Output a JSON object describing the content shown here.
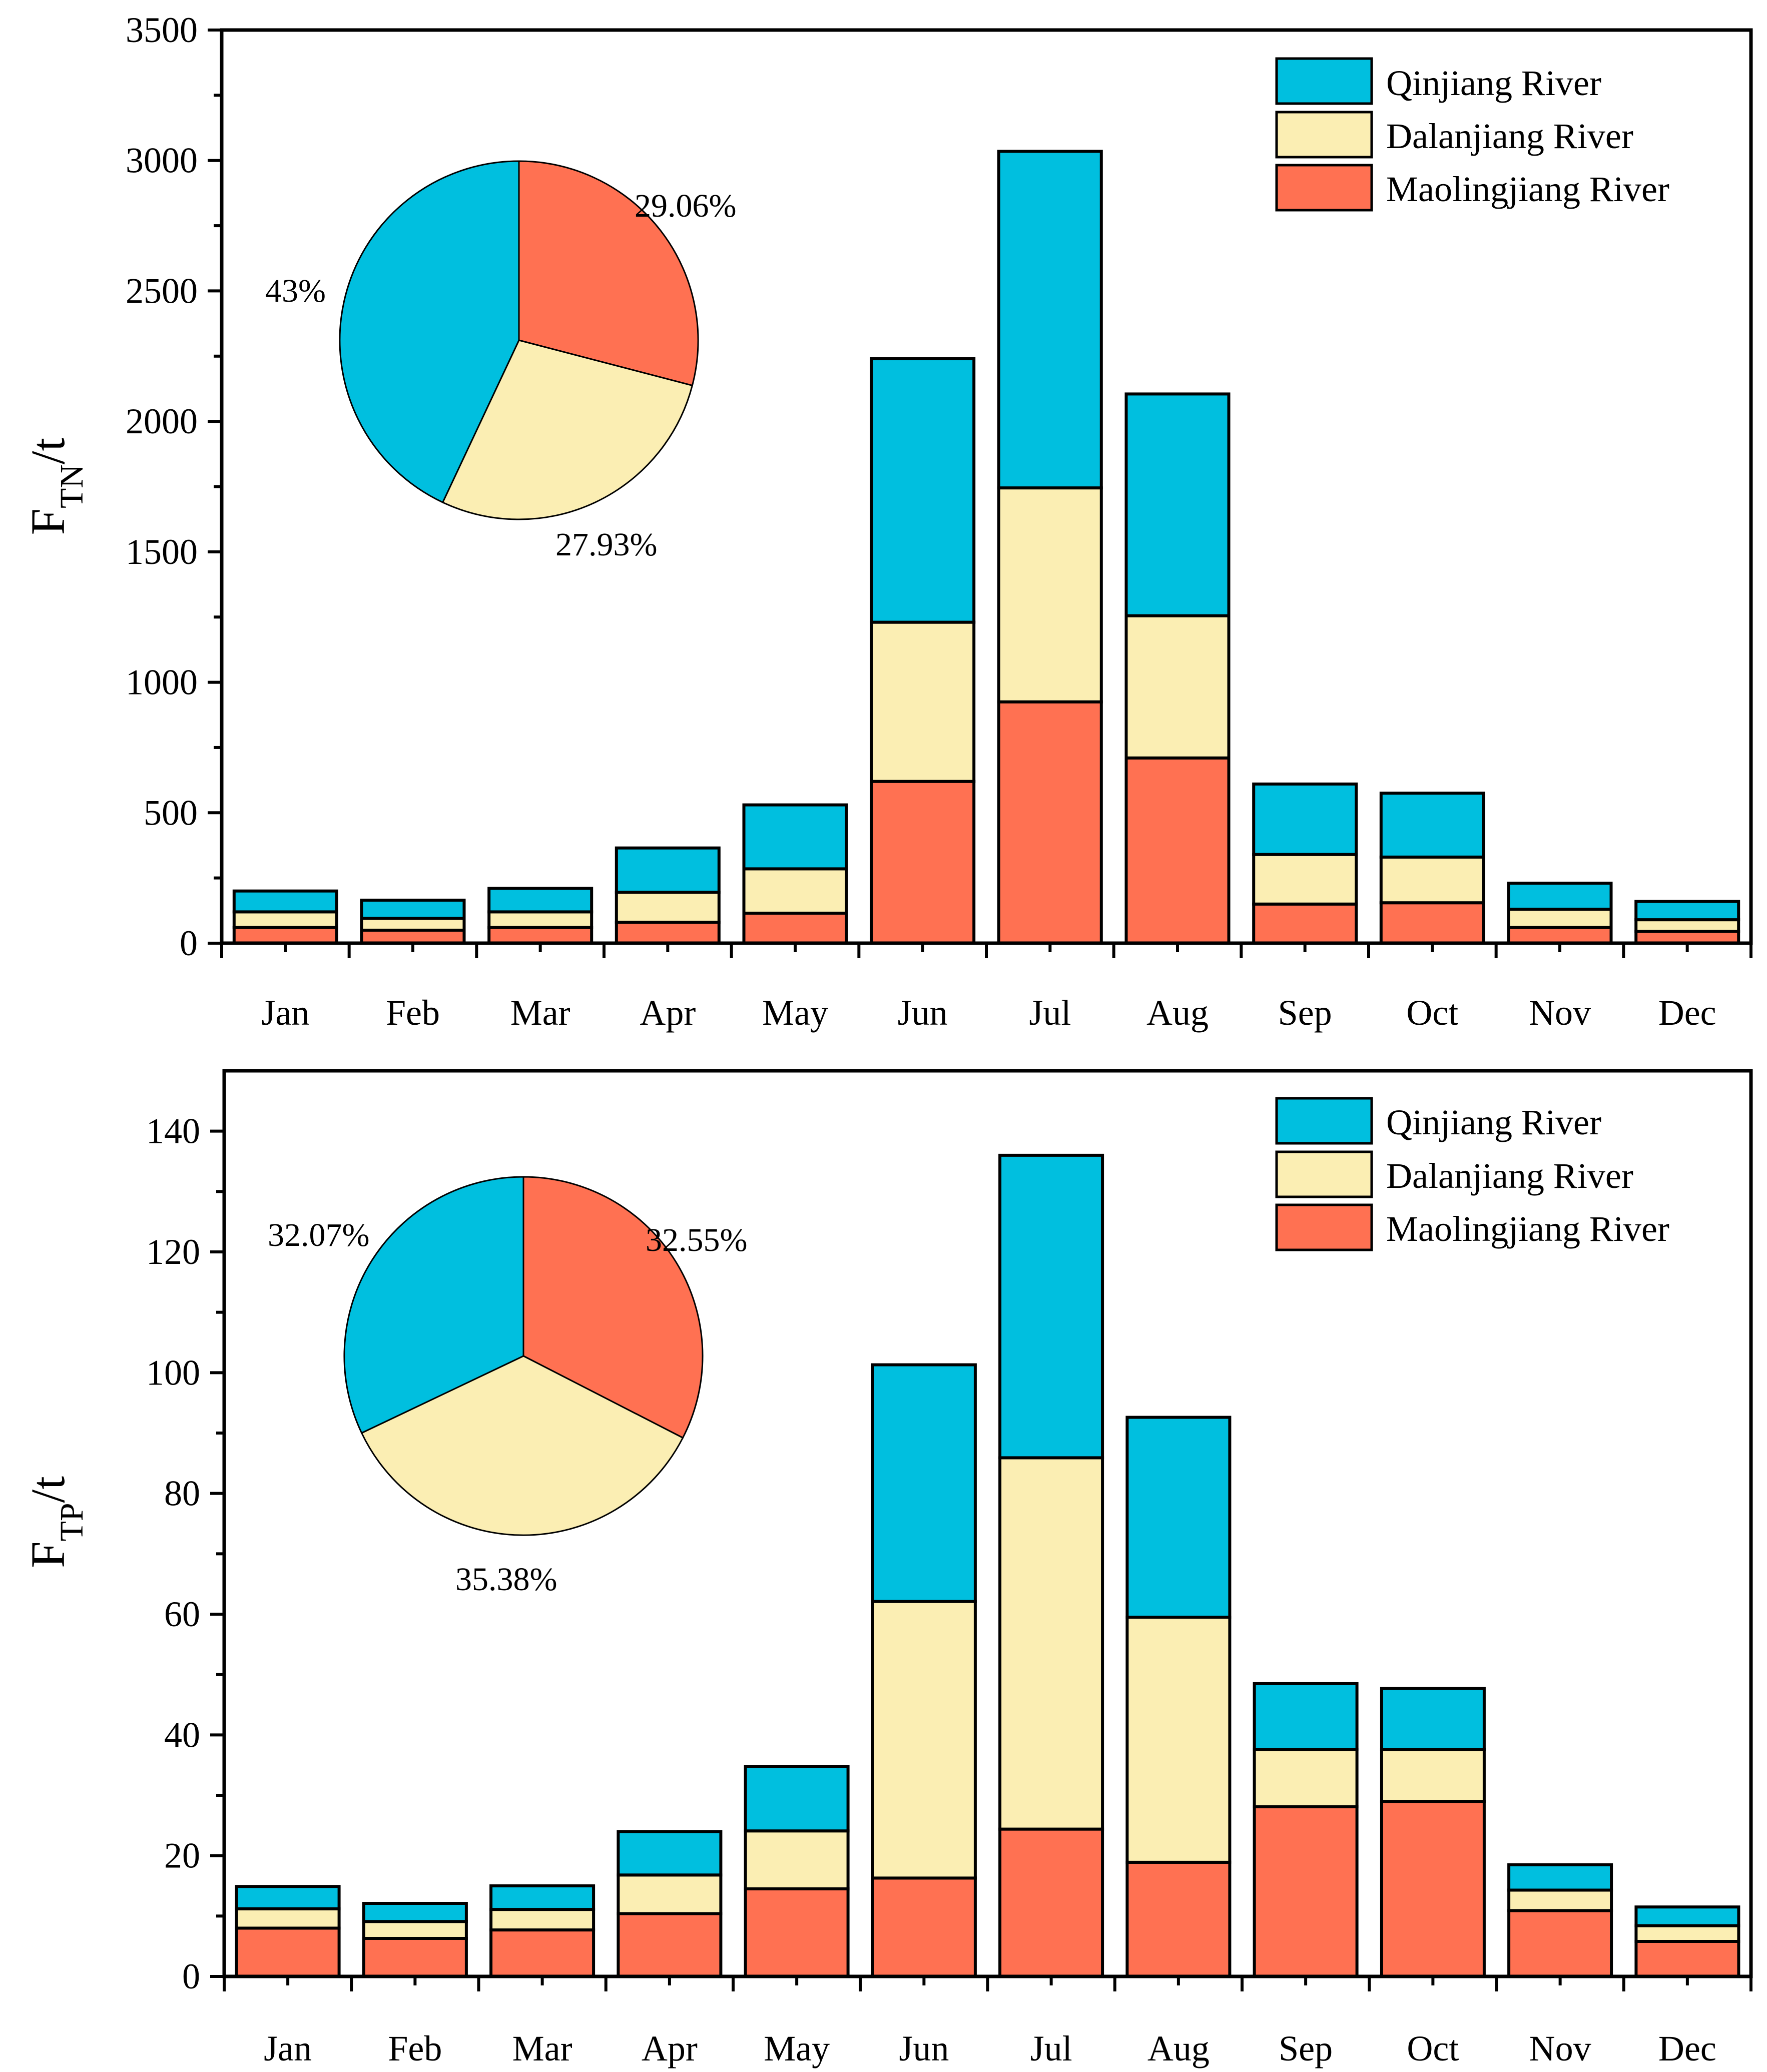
{
  "colors": {
    "qinjiang": "#00BFDF",
    "dalanjiang": "#FBEEB3",
    "maolingjiang": "#FF7152",
    "axis": "#000000"
  },
  "chart_data": [
    {
      "id": "tn",
      "type": "bar",
      "stacked": true,
      "title": "",
      "ylabel_main": "F",
      "ylabel_sub": "TN",
      "ylabel_suffix": "/t",
      "xlabel": "",
      "ylim": [
        0,
        3500
      ],
      "yticks": [
        "0",
        "500",
        "1000",
        "1500",
        "2000",
        "2500",
        "3000",
        "3500"
      ],
      "ytick_values": [
        0,
        500,
        1000,
        1500,
        2000,
        2500,
        3000,
        3500
      ],
      "grid": false,
      "legend_position": "top-right",
      "categories": [
        "Jan",
        "Feb",
        "Mar",
        "Apr",
        "May",
        "Jun",
        "Jul",
        "Aug",
        "Sep",
        "Oct",
        "Nov",
        "Dec"
      ],
      "series": [
        {
          "name": "Maolingjiang River",
          "key": "maolingjiang",
          "values": [
            60,
            50,
            60,
            80,
            115,
            620,
            925,
            710,
            150,
            155,
            60,
            45
          ]
        },
        {
          "name": "Dalanjiang River",
          "key": "dalanjiang",
          "values": [
            60,
            45,
            60,
            115,
            170,
            610,
            820,
            545,
            190,
            175,
            70,
            45
          ]
        },
        {
          "name": "Qinjiang River",
          "key": "qinjiang",
          "values": [
            80,
            70,
            90,
            170,
            245,
            1010,
            1290,
            850,
            270,
            245,
            100,
            70
          ]
        }
      ],
      "legend": [
        "Qinjiang River",
        "Dalanjiang River",
        "Maolingjiang River"
      ],
      "pie": {
        "slices": [
          {
            "name": "Maolingjiang River",
            "key": "maolingjiang",
            "value": 29.06,
            "label": "29.06%"
          },
          {
            "name": "Dalanjiang River",
            "key": "dalanjiang",
            "value": 27.93,
            "label": "27.93%"
          },
          {
            "name": "Qinjiang River",
            "key": "qinjiang",
            "value": 43.0,
            "label": "43%"
          }
        ]
      }
    },
    {
      "id": "tp",
      "type": "bar",
      "stacked": true,
      "title": "",
      "ylabel_main": "F",
      "ylabel_sub": "TP",
      "ylabel_suffix": "/t",
      "xlabel": "",
      "ylim": [
        0,
        150
      ],
      "yticks": [
        "0",
        "20",
        "40",
        "60",
        "80",
        "100",
        "120",
        "140"
      ],
      "ytick_values": [
        0,
        20,
        40,
        60,
        80,
        100,
        120,
        140
      ],
      "grid": false,
      "legend_position": "top-right",
      "categories": [
        "Jan",
        "Feb",
        "Mar",
        "Apr",
        "May",
        "Jun",
        "Jul",
        "Aug",
        "Sep",
        "Oct",
        "Nov",
        "Dec"
      ],
      "series": [
        {
          "name": "Maolingjiang River",
          "key": "maolingjiang",
          "values": [
            8.0,
            6.3,
            7.7,
            10.4,
            14.5,
            16.3,
            24.4,
            18.9,
            28.1,
            29.0,
            10.9,
            5.8
          ]
        },
        {
          "name": "Dalanjiang River",
          "key": "dalanjiang",
          "values": [
            3.2,
            2.8,
            3.4,
            6.4,
            9.6,
            45.8,
            61.5,
            40.6,
            9.5,
            8.6,
            3.4,
            2.6
          ]
        },
        {
          "name": "Qinjiang River",
          "key": "qinjiang",
          "values": [
            3.7,
            3.0,
            3.9,
            7.2,
            10.7,
            39.2,
            50.1,
            33.1,
            10.9,
            10.1,
            4.2,
            3.1
          ]
        }
      ],
      "legend": [
        "Qinjiang River",
        "Dalanjiang River",
        "Maolingjiang River"
      ],
      "pie": {
        "slices": [
          {
            "name": "Maolingjiang River",
            "key": "maolingjiang",
            "value": 32.55,
            "label": "32.55%"
          },
          {
            "name": "Dalanjiang River",
            "key": "dalanjiang",
            "value": 35.38,
            "label": "35.38%"
          },
          {
            "name": "Qinjiang River",
            "key": "qinjiang",
            "value": 32.07,
            "label": "32.07%"
          }
        ]
      }
    }
  ]
}
